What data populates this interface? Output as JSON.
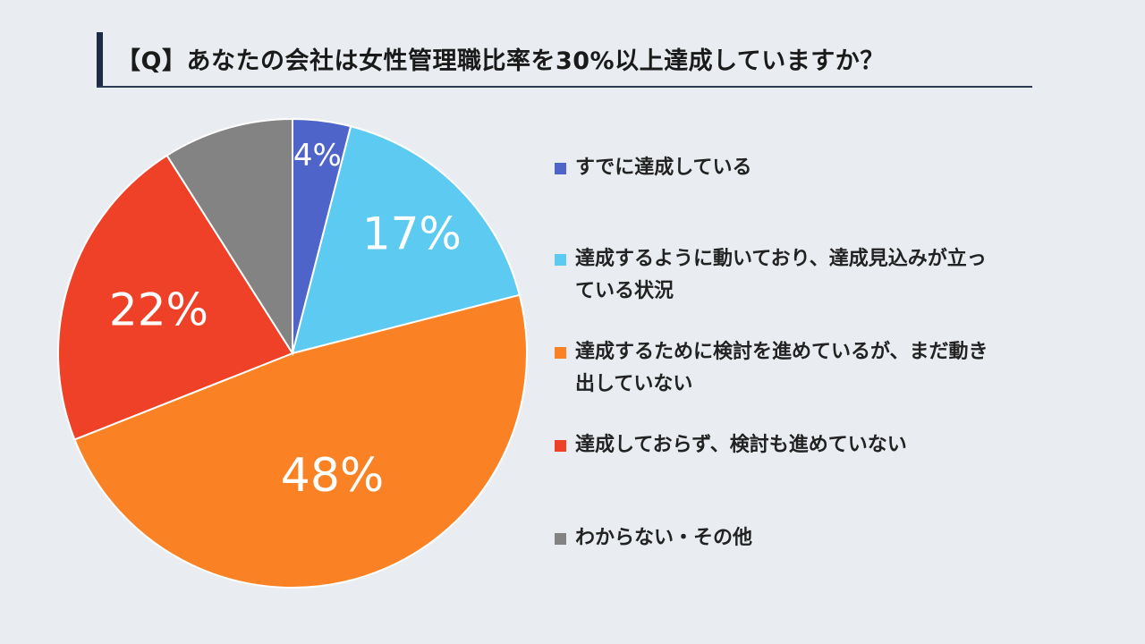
{
  "header": {
    "title": "【Q】あなたの会社は女性管理職比率を30%以上達成していますか？"
  },
  "chart_data": {
    "type": "pie",
    "title": "【Q】あなたの会社は女性管理職比率を30%以上達成していますか？",
    "legend_position": "right",
    "slices": [
      {
        "name": "すでに達成している",
        "value": 4,
        "label": "4%",
        "color": "#4f64c8"
      },
      {
        "name": "達成するように動いており、達成見込みが立っている状況",
        "value": 17,
        "label": "17%",
        "color": "#5dcaf2"
      },
      {
        "name": "達成するために検討を進めているが、まだ動き出していない",
        "value": 48,
        "label": "48%",
        "color": "#fa8224"
      },
      {
        "name": "達成しておらず、検討も進めていない",
        "value": 22,
        "label": "22%",
        "color": "#ee4128"
      },
      {
        "name": "わからない・その他",
        "value": 9,
        "label": "",
        "color": "#838383"
      }
    ]
  }
}
